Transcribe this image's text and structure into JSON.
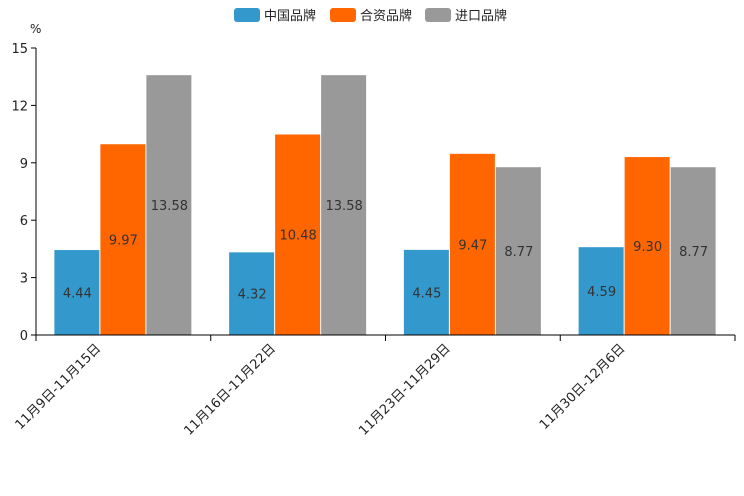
{
  "chart_data": {
    "type": "bar",
    "title": "",
    "unit": "%",
    "xlabel": "",
    "ylabel": "%",
    "ylim": [
      0,
      15
    ],
    "yticks": [
      "0",
      "3",
      "6",
      "9",
      "12",
      "15"
    ],
    "grid": false,
    "legend_position": "top-center",
    "categories": [
      "11月9日-11月15日",
      "11月16日-11月22日",
      "11月23日-11月29日",
      "11月30日-12月6日"
    ],
    "series": [
      {
        "name": "中国品牌",
        "color": "#3399CC",
        "values": [
          4.44,
          4.32,
          4.45,
          4.59
        ],
        "labels": [
          "4.44",
          "4.32",
          "4.45",
          "4.59"
        ]
      },
      {
        "name": "合资品牌",
        "color": "#FF6600",
        "values": [
          9.97,
          10.48,
          9.47,
          9.3
        ],
        "labels": [
          "9.97",
          "10.48",
          "9.47",
          "9.30"
        ]
      },
      {
        "name": "进口品牌",
        "color": "#999999",
        "values": [
          13.58,
          13.58,
          8.77,
          8.77
        ],
        "labels": [
          "13.58",
          "13.58",
          "8.77",
          "8.77"
        ]
      }
    ]
  }
}
